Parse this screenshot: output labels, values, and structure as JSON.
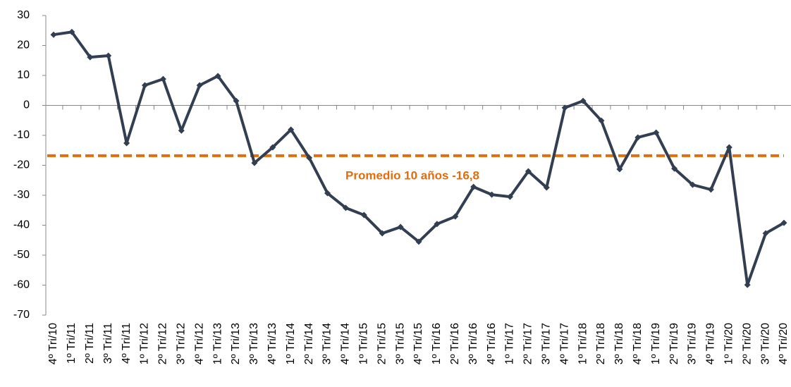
{
  "chart_data": {
    "type": "line",
    "categories": [
      "4º Tri/10",
      "1º Tri/11",
      "2º Tri/11",
      "3º Tri/11",
      "4º Tri/11",
      "1º Tri/12",
      "2º Tri/12",
      "3º Tri/12",
      "4º Tri/12",
      "1º Tri/13",
      "2º Tri/13",
      "3º Tri/13",
      "4º Tri/13",
      "1º Tri/14",
      "2º Tri/14",
      "3º Tri/14",
      "4º Tri/14",
      "1º Tri/15",
      "2º Tri/15",
      "3º Tri/15",
      "4º Tri/15",
      "1º Tri/16",
      "2º Tri/16",
      "3º Tri/16",
      "4º Tri/16",
      "1º Tri/17",
      "2º Tri/17",
      "3º Tri/17",
      "4º Tri/17",
      "1º Tri/18",
      "2º Tri/18",
      "3º Tri/18",
      "4º Tri/18",
      "1º Tri/19",
      "2º Tri/19",
      "3º Tri/19",
      "4º Tri/19",
      "1º Tri/20",
      "2º Tri/20",
      "3º Tri/20",
      "4º Tri/20"
    ],
    "values": [
      23.6,
      24.5,
      16.1,
      16.6,
      -12.6,
      6.7,
      8.8,
      -8.4,
      6.7,
      9.8,
      1.5,
      -19.2,
      -14.0,
      -8.1,
      -17.5,
      -29.3,
      -34.2,
      -36.6,
      -42.7,
      -40.6,
      -45.5,
      -39.6,
      -37.1,
      -27.2,
      -29.8,
      -30.5,
      -22.0,
      -27.4,
      -0.8,
      1.5,
      -5.1,
      -21.3,
      -10.7,
      -9.1,
      -21.1,
      -26.5,
      -28.1,
      -14.0,
      -59.9,
      -42.7,
      -39.2
    ],
    "color": "#333f50",
    "ylim": [
      -70,
      30
    ],
    "yticks": [
      -70,
      -60,
      -50,
      -40,
      -30,
      -20,
      -10,
      0,
      10,
      20,
      30
    ],
    "reference_line": {
      "value": -16.8,
      "label": "Promedio 10 años -16,8",
      "color": "#e46c0a"
    }
  }
}
